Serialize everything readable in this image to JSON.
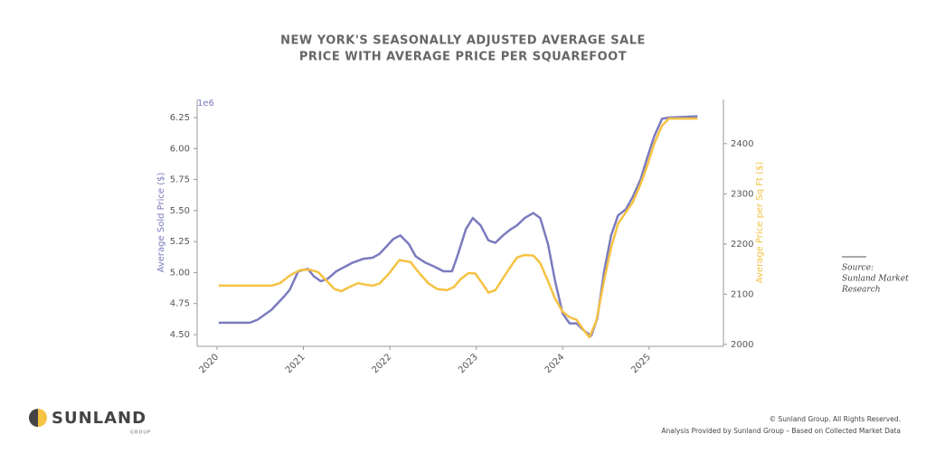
{
  "chart_data": {
    "type": "dual_line",
    "title": [
      "NEW YORK'S SEASONALLY ADJUSTED AVERAGE SALE",
      "PRICE WITH AVERAGE PRICE PER SQUAREFOOT"
    ],
    "y_label": "Average Sold Price ($)",
    "y_offset_label": "1e6",
    "y2_label": "Average Price per Sq Ft ($)",
    "xlim": [
      2019.77,
      2025.86
    ],
    "xticks": [
      2020,
      2021,
      2022,
      2023,
      2024,
      2025
    ],
    "ylim": [
      4.405,
      6.396
    ],
    "yticks": [
      {
        "value": 4.5,
        "label": "4.50"
      },
      4.75,
      {
        "value": 5.0,
        "label": "5.00"
      },
      5.25,
      {
        "value": 5.5,
        "label": "5.50"
      },
      5.75,
      {
        "value": 6.0,
        "label": "6.00"
      },
      6.25
    ],
    "y2lim": [
      1996,
      2488
    ],
    "y2ticks": [
      2000,
      2100,
      2200,
      2300,
      2400
    ],
    "series": [
      {
        "name": "Average Sold Price",
        "color": "#7b7bbf",
        "axis": "y",
        "x": [
          2020.02,
          2020.38,
          2020.47,
          2020.63,
          2020.78,
          2020.84,
          2020.94,
          2021.05,
          2021.12,
          2021.2,
          2021.28,
          2021.38,
          2021.57,
          2021.69,
          2021.8,
          2021.88,
          2021.96,
          2022.04,
          2022.12,
          2022.22,
          2022.3,
          2022.41,
          2022.51,
          2022.62,
          2022.72,
          2022.79,
          2022.88,
          2022.96,
          2023.05,
          2023.14,
          2023.22,
          2023.31,
          2023.4,
          2023.47,
          2023.56,
          2023.66,
          2023.74,
          2023.83,
          2023.91,
          2024.0,
          2024.08,
          2024.16,
          2024.25,
          2024.33,
          2024.4,
          2024.48,
          2024.56,
          2024.64,
          2024.73,
          2024.81,
          2024.9,
          2024.98,
          2025.06,
          2025.15,
          2025.23,
          2025.56
        ],
        "values": [
          4.595,
          4.595,
          4.62,
          4.7,
          4.81,
          4.86,
          5.01,
          5.03,
          4.97,
          4.93,
          4.95,
          5.01,
          5.08,
          5.11,
          5.12,
          5.15,
          5.21,
          5.27,
          5.3,
          5.23,
          5.13,
          5.08,
          5.05,
          5.01,
          5.01,
          5.15,
          5.35,
          5.44,
          5.38,
          5.26,
          5.24,
          5.3,
          5.35,
          5.38,
          5.44,
          5.48,
          5.44,
          5.23,
          4.94,
          4.67,
          4.59,
          4.59,
          4.53,
          4.49,
          4.63,
          5.01,
          5.3,
          5.46,
          5.51,
          5.61,
          5.75,
          5.93,
          6.1,
          6.24,
          6.25,
          6.26
        ]
      },
      {
        "name": "Average Price per Sq Ft",
        "color": "#f5c242",
        "axis": "y2",
        "x": [
          2020.02,
          2020.63,
          2020.73,
          2020.84,
          2020.96,
          2021.07,
          2021.17,
          2021.26,
          2021.36,
          2021.44,
          2021.53,
          2021.63,
          2021.72,
          2021.8,
          2021.88,
          2021.99,
          2022.11,
          2022.24,
          2022.34,
          2022.45,
          2022.55,
          2022.66,
          2022.74,
          2022.82,
          2022.91,
          2022.99,
          2023.08,
          2023.14,
          2023.22,
          2023.31,
          2023.39,
          2023.47,
          2023.56,
          2023.66,
          2023.74,
          2023.83,
          2023.91,
          2024.0,
          2024.08,
          2024.16,
          2024.25,
          2024.31,
          2024.39,
          2024.48,
          2024.56,
          2024.64,
          2024.73,
          2024.81,
          2024.9,
          2024.98,
          2025.06,
          2025.15,
          2025.23,
          2025.56
        ],
        "values": [
          2117,
          2117,
          2122,
          2137,
          2148,
          2149,
          2144,
          2128,
          2110,
          2106,
          2114,
          2122,
          2119,
          2117,
          2121,
          2141,
          2168,
          2164,
          2142,
          2121,
          2110,
          2108,
          2114,
          2130,
          2142,
          2141,
          2119,
          2103,
          2108,
          2132,
          2153,
          2173,
          2178,
          2177,
          2162,
          2126,
          2092,
          2065,
          2054,
          2049,
          2027,
          2014,
          2047,
          2128,
          2193,
          2240,
          2263,
          2283,
          2319,
          2357,
          2400,
          2436,
          2450,
          2450
        ]
      }
    ]
  },
  "source": [
    "Source:",
    "Sunland Market",
    "Research"
  ],
  "logo": {
    "name": "SUNLAND",
    "sub": "GROUP"
  },
  "footer": [
    "© Sunland Group. All Rights Reserved.",
    "Analysis Provided by Sunland Group – Based on Collected Market Data"
  ]
}
